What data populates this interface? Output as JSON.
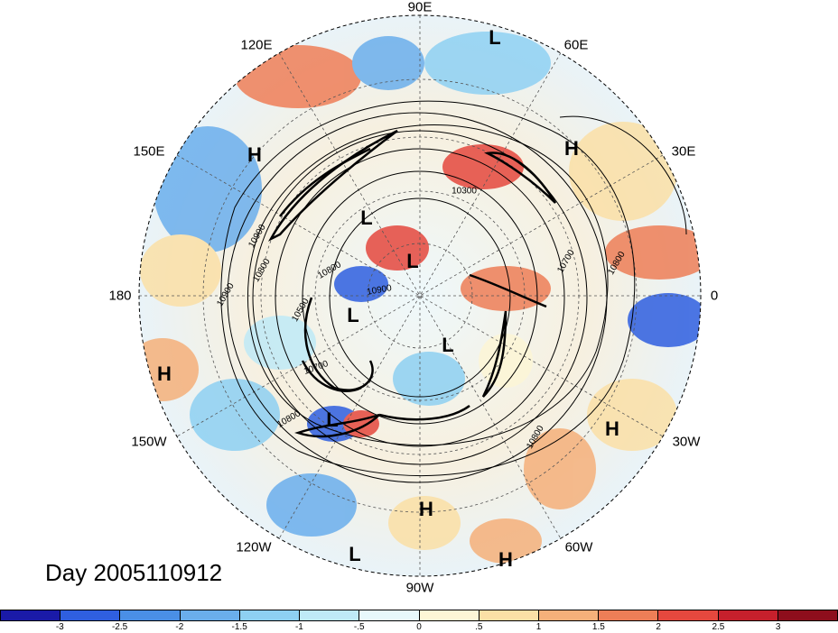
{
  "title": "Day 2005110912",
  "longitude_labels": {
    "e90": "90E",
    "e120": "120E",
    "e60": "60E",
    "e150": "150E",
    "e30": "30E",
    "w180": "180",
    "zero": "0",
    "w150": "150W",
    "w30": "30W",
    "w120": "120W",
    "w60": "60W",
    "w90": "90W"
  },
  "pressure_centers": [
    {
      "id": "l1",
      "label": "L"
    },
    {
      "id": "h1",
      "label": "H"
    },
    {
      "id": "h2",
      "label": "H"
    },
    {
      "id": "l2",
      "label": "L"
    },
    {
      "id": "l3",
      "label": "L"
    },
    {
      "id": "l4",
      "label": "L"
    },
    {
      "id": "l5",
      "label": "L"
    },
    {
      "id": "h3",
      "label": "H"
    },
    {
      "id": "l6",
      "label": "L"
    },
    {
      "id": "h4",
      "label": "H"
    },
    {
      "id": "h5",
      "label": "H"
    },
    {
      "id": "l7",
      "label": "L"
    },
    {
      "id": "h6",
      "label": "H"
    }
  ],
  "contour_labels": {
    "c1": "10300",
    "c2": "10900",
    "c3": "10800",
    "c4": "10900",
    "c5": "10800",
    "c6": "10500",
    "c7": "10700",
    "c8": "10800",
    "c9": "10700",
    "c10": "10800",
    "c11": "10800",
    "c12": "10900"
  },
  "colorbar": {
    "labels": [
      "-3",
      "-2.5",
      "-2",
      "-1.5",
      "-1",
      "-.5",
      "0",
      ".5",
      "1",
      "1.5",
      "2",
      "2.5",
      "3"
    ],
    "colors": [
      "#1a1aa8",
      "#2f5fe0",
      "#4a8fe6",
      "#6aaeec",
      "#8ed0f2",
      "#bfeaf7",
      "#e8f8fb",
      "#fdf6d6",
      "#fbe0a6",
      "#f5b07a",
      "#ee7e57",
      "#e5483e",
      "#c6202c",
      "#8e0e1c"
    ]
  }
}
